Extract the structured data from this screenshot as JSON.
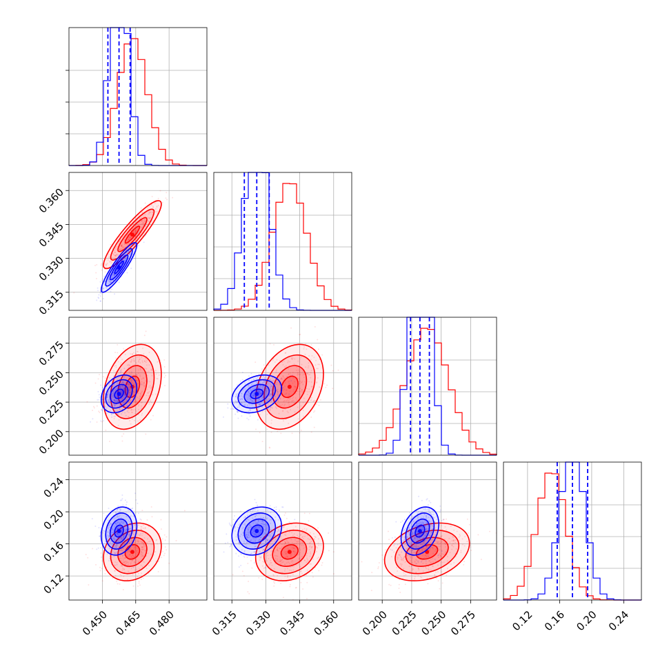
{
  "chart_data": {
    "type": "corner",
    "parameters": 4,
    "series": [
      {
        "name": "red",
        "color": "#ff0000",
        "means": [
          0.4635,
          0.3405,
          0.238,
          0.15
        ],
        "sds": [
          0.0065,
          0.0075,
          0.018,
          0.018
        ],
        "corr": {
          "0-1": 0.9,
          "0-2": 0.3,
          "0-3": 0.2,
          "1-2": 0.3,
          "1-3": 0.2,
          "2-3": 0.3
        }
      },
      {
        "name": "blue",
        "color": "#0000ff",
        "means": [
          0.4575,
          0.326,
          0.232,
          0.176
        ],
        "sds": [
          0.004,
          0.0055,
          0.008,
          0.015
        ],
        "corr": {
          "0-1": 0.9,
          "0-2": 0.3,
          "0-3": 0.2,
          "1-2": 0.3,
          "1-3": 0.2,
          "2-3": 0.3
        }
      }
    ],
    "quantile_lines": {
      "color": "#0000ff",
      "style": "dashed",
      "values": [
        [
          0.4525,
          0.4575,
          0.4625
        ],
        [
          0.3205,
          0.326,
          0.3315
        ],
        [
          0.224,
          0.232,
          0.24
        ],
        [
          0.157,
          0.176,
          0.195
        ]
      ]
    },
    "axes": [
      {
        "range": [
          0.435,
          0.497
        ],
        "ticks": [
          0.45,
          0.465,
          0.48
        ],
        "tick_labels": [
          "0.450",
          "0.465",
          "0.480"
        ]
      },
      {
        "range": [
          0.307,
          0.368
        ],
        "ticks": [
          0.315,
          0.33,
          0.345,
          0.36
        ],
        "tick_labels": [
          "0.315",
          "0.330",
          "0.345",
          "0.360"
        ]
      },
      {
        "range": [
          0.18,
          0.297
        ],
        "ticks": [
          0.2,
          0.225,
          0.25,
          0.275
        ],
        "tick_labels": [
          "0.200",
          "0.225",
          "0.250",
          "0.275"
        ]
      },
      {
        "range": [
          0.09,
          0.262
        ],
        "ticks": [
          0.12,
          0.16,
          0.2,
          0.24
        ],
        "tick_labels": [
          "0.12",
          "0.16",
          "0.20",
          "0.24"
        ]
      }
    ],
    "histogram_bins": 20,
    "contour_levels_sigma": [
      0.5,
      1.0,
      1.5,
      2.0
    ],
    "grid": true,
    "title": "",
    "xlabel": "",
    "ylabel": ""
  }
}
